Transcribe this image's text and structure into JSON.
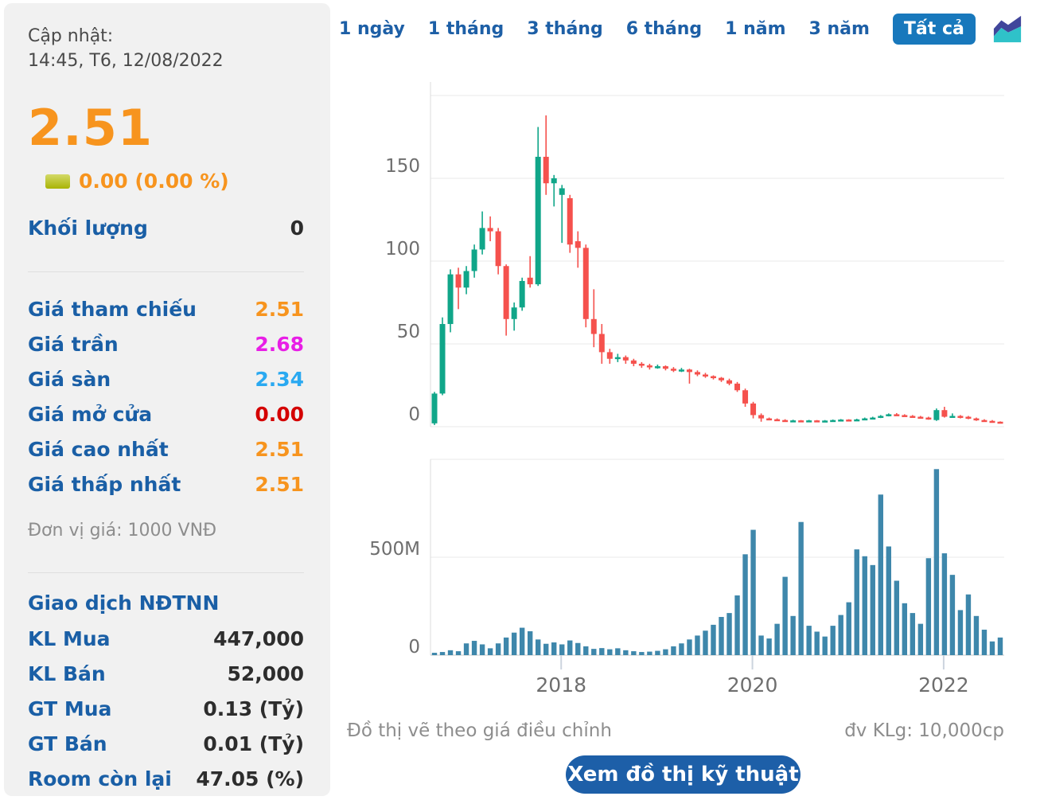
{
  "panel": {
    "updated_label": "Cập nhật:",
    "updated_time": "14:45, T6, 12/08/2022",
    "price": "2.51",
    "change": "0.00 (0.00 %)",
    "volume_label": "Khối lượng",
    "volume_value": "0",
    "price_rows": [
      {
        "label": "Giá tham chiếu",
        "value": "2.51",
        "color": "#f7941e"
      },
      {
        "label": "Giá trần",
        "value": "2.68",
        "color": "#e81ee6"
      },
      {
        "label": "Giá sàn",
        "value": "2.34",
        "color": "#2aa9f1"
      },
      {
        "label": "Giá mở cửa",
        "value": "0.00",
        "color": "#d40000"
      },
      {
        "label": "Giá cao nhất",
        "value": "2.51",
        "color": "#f7941e"
      },
      {
        "label": "Giá thấp nhất",
        "value": "2.51",
        "color": "#f7941e"
      }
    ],
    "unit_note": "Đơn vị giá: 1000 VNĐ",
    "foreign_title": "Giao dịch NĐTNN",
    "foreign_rows": [
      {
        "label": "KL Mua",
        "value": "447,000"
      },
      {
        "label": "KL Bán",
        "value": "52,000"
      },
      {
        "label": "GT Mua",
        "value": "0.13 (Tỷ)"
      },
      {
        "label": "GT Bán",
        "value": "0.01 (Tỷ)"
      },
      {
        "label": "Room còn lại",
        "value": "47.05 (%)"
      }
    ]
  },
  "toolbar": {
    "ranges": [
      "1 ngày",
      "1 tháng",
      "3 tháng",
      "6 tháng",
      "1 năm",
      "3 năm"
    ],
    "selected_range": "Tất cả",
    "chart_icon": "area-chart-icon"
  },
  "footer": {
    "note_left": "Đồ thị vẽ theo giá điều chỉnh",
    "note_right": "đv KLg: 10,000cp",
    "button": "Xem đồ thị kỹ thuật"
  },
  "colors": {
    "accent_orange": "#f7941e",
    "label_blue": "#1a5fa6",
    "selected_tab_bg": "#1878bc",
    "button_bg": "#1d5fa8",
    "panel_bg": "#f1f1f1",
    "candle_up": "#10a689",
    "candle_down": "#f5514d",
    "volume_bar": "#3e87ab"
  },
  "chart_data": [
    {
      "type": "candlestick",
      "title": "",
      "xlabel": "",
      "ylabel": "",
      "ylim": [
        0,
        200
      ],
      "y_ticks": [
        0,
        50,
        100,
        150
      ],
      "grid_values": [
        0,
        50,
        100,
        150,
        200
      ],
      "up_color": "#10a689",
      "down_color": "#f5514d",
      "x_ticks": [
        {
          "i": 15.9,
          "label": "2018"
        },
        {
          "i": 39.9,
          "label": "2020"
        },
        {
          "i": 63.9,
          "label": "2022"
        }
      ],
      "candles_format": "[open, high, low, close]",
      "candles": [
        [
          2,
          21,
          1,
          20
        ],
        [
          20,
          66,
          19,
          62
        ],
        [
          62,
          95,
          57,
          92
        ],
        [
          92,
          96,
          71,
          84
        ],
        [
          84,
          97,
          80,
          94
        ],
        [
          94,
          110,
          90,
          107
        ],
        [
          107,
          130,
          104,
          120
        ],
        [
          120,
          127,
          112,
          118
        ],
        [
          118,
          120,
          92,
          97
        ],
        [
          97,
          98,
          55,
          65
        ],
        [
          65,
          75,
          58,
          72
        ],
        [
          72,
          90,
          70,
          88
        ],
        [
          90,
          103,
          84,
          86
        ],
        [
          86,
          181,
          85,
          163
        ],
        [
          163,
          188,
          140,
          147
        ],
        [
          147,
          152,
          133,
          150
        ],
        [
          140,
          146,
          111,
          144
        ],
        [
          138,
          140,
          105,
          110
        ],
        [
          112,
          118,
          96,
          108
        ],
        [
          108,
          110,
          60,
          65
        ],
        [
          65,
          83,
          48,
          56
        ],
        [
          56,
          62,
          38,
          45
        ],
        [
          45,
          47,
          38,
          41
        ],
        [
          41,
          44,
          39,
          42
        ],
        [
          42,
          43,
          38,
          40
        ],
        [
          40,
          41,
          36.5,
          38
        ],
        [
          38,
          39,
          35.5,
          37
        ],
        [
          37,
          38,
          34.5,
          36
        ],
        [
          36,
          37.5,
          35,
          36.5
        ],
        [
          36.5,
          37,
          34,
          35
        ],
        [
          35,
          36,
          33,
          34
        ],
        [
          34,
          35.5,
          33,
          34.5
        ],
        [
          34.5,
          35,
          26,
          33
        ],
        [
          33,
          34,
          30.5,
          31.5
        ],
        [
          31.5,
          32.5,
          29.5,
          30.5
        ],
        [
          30.5,
          31,
          28.5,
          29.5
        ],
        [
          29.5,
          30,
          27,
          28
        ],
        [
          28,
          29,
          25,
          26
        ],
        [
          26,
          27,
          21,
          22
        ],
        [
          22,
          23,
          12,
          14
        ],
        [
          14,
          15,
          5,
          7
        ],
        [
          7,
          8,
          3,
          5
        ],
        [
          5,
          5.5,
          4,
          4.5
        ],
        [
          4.5,
          5,
          3.5,
          4
        ],
        [
          4,
          4.5,
          3,
          3.5
        ],
        [
          3.5,
          4.2,
          3.2,
          3.8
        ],
        [
          3.8,
          4,
          3,
          3.5
        ],
        [
          3.5,
          4.1,
          3.2,
          3.8
        ],
        [
          3.8,
          4,
          3.1,
          3.5
        ],
        [
          3.5,
          4,
          3.2,
          3.7
        ],
        [
          3.7,
          4.3,
          3.4,
          4
        ],
        [
          4,
          4.6,
          3.7,
          4.3
        ],
        [
          4.3,
          4.5,
          3.6,
          4
        ],
        [
          4,
          4.8,
          3.8,
          4.4
        ],
        [
          4.4,
          5.5,
          4.2,
          5
        ],
        [
          5,
          6,
          4.8,
          5.5
        ],
        [
          5.5,
          7,
          5.2,
          6.5
        ],
        [
          6.5,
          8,
          6.2,
          7.5
        ],
        [
          7.5,
          8.2,
          6.5,
          7
        ],
        [
          7,
          7.5,
          6,
          6.5
        ],
        [
          6.5,
          7,
          5.5,
          6
        ],
        [
          6,
          6.5,
          5,
          5.5
        ],
        [
          5.5,
          6,
          4.2,
          4.5
        ],
        [
          4,
          11,
          3.5,
          10
        ],
        [
          10,
          12,
          5.5,
          6
        ],
        [
          6,
          8,
          5.5,
          6.5
        ],
        [
          6.5,
          7,
          5,
          6
        ],
        [
          6,
          6.5,
          4.5,
          5
        ],
        [
          5,
          5.5,
          3.5,
          4
        ],
        [
          4,
          4.5,
          3,
          3.5
        ],
        [
          3.5,
          4,
          2.8,
          3
        ],
        [
          3,
          3.2,
          2.3,
          2.5
        ]
      ]
    },
    {
      "type": "bar",
      "title": "",
      "ylabel": "",
      "unit": "M",
      "ylim": [
        0,
        1000
      ],
      "bar_color": "#3e87ab",
      "y_ticks": [
        {
          "v": 500,
          "label": "500M"
        },
        {
          "v": 0,
          "label": "0"
        }
      ],
      "x_ticks": [
        {
          "i": 15.9,
          "label": "2018"
        },
        {
          "i": 39.9,
          "label": "2020"
        },
        {
          "i": 63.9,
          "label": "2022"
        }
      ],
      "values": [
        12,
        16,
        25,
        20,
        60,
        73,
        55,
        35,
        60,
        90,
        115,
        140,
        122,
        80,
        58,
        65,
        55,
        75,
        62,
        45,
        32,
        36,
        30,
        35,
        25,
        20,
        16,
        18,
        22,
        30,
        45,
        60,
        80,
        100,
        125,
        155,
        195,
        215,
        305,
        515,
        640,
        100,
        85,
        160,
        400,
        200,
        680,
        150,
        120,
        95,
        150,
        205,
        270,
        540,
        505,
        460,
        820,
        555,
        380,
        265,
        215,
        160,
        495,
        950,
        520,
        410,
        230,
        310,
        200,
        130,
        70,
        90
      ]
    }
  ]
}
